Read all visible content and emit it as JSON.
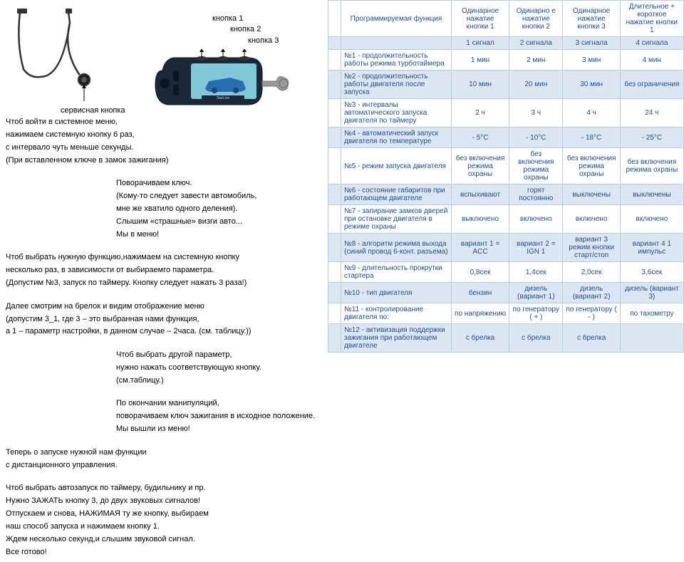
{
  "labels": {
    "btn1": "кнопка 1",
    "btn2": "кнопка 2",
    "btn3": "кнопка 3",
    "service": "сервисная кнопка"
  },
  "instr": {
    "p1a": "Чтоб войти в системное меню,",
    "p1b": "нажимаем системную кнопку 6 раз,",
    "p1c": "с интервало чуть меньше секунды.",
    "p1d": "(При вставленном ключе в замок зажигания)",
    "p2a": "Поворачиваем ключ.",
    "p2b": "(Кому-то следует завести автомобиль,",
    "p2c": "мне же хватило одного деления).",
    "p2d": "Слышим «страшные» визги авто...",
    "p2e": "Мы в меню!",
    "p3a": "Чтоб выбрать нужную функцию,нажимаем на системную кнопку",
    "p3b": "несколько раз, в зависимости от выбираемго параметра.",
    "p3c": "(Допустим №3, запуск по таймеру. Кнопку следует нажать 3 раза!)",
    "p4a": "Далее смотрим на брелок и видим отображение меню",
    "p4b": "(допустим 3_1, где 3 – это выбранная нами функция,",
    "p4c": "а 1 – параметр настройки, в данном случае – 2часа. (см. таблицу.))",
    "p5a": "Чтоб выбрать другой параметр,",
    "p5b": "нужно нажать соответствующую кнопку.",
    "p5c": "(см.таблицу.)",
    "p6a": "По окончании манипуляций,",
    "p6b": "поворачиваем ключ зажигания в исходное положение.",
    "p6c": "Мы вышли из меню!",
    "p7a": "Теперь о запуске нужной нам функции",
    "p7b": "с дистанционного управления.",
    "p8a": "Чтоб выбрать автозапуск по таймеру, будильнику и пр.",
    "p8b": "Нужно ЗАЖАТЬ кнопку 3, до двух звуковых сигналов!",
    "p8c": "Отпускаем и снова, НАЖИМАЯ ту же кнопку, выбираем",
    "p8d": "наш способ запуска и нажимаем кнопку 1.",
    "p8e": "Ждем несколько секунд,и слышим звуковой сигнал.",
    "p8f": "Все готово!"
  },
  "table": {
    "headers": [
      "",
      "Программируемая функция",
      "Одинарное нажатие кнопки 1",
      "Одинарно е нажатие кнопки 2",
      "Одинарное нажатие кнопки 3",
      "Длительное + короткое нажатие кнопки 1"
    ],
    "sig": [
      "",
      "",
      "1 сигнал",
      "2 сигнала",
      "3 сигнала",
      "4 сигнала"
    ],
    "rows": [
      {
        "n": "",
        "f": "№1 - продолжительность работы режима турботаймера",
        "c": [
          "1 мин",
          "2 мин",
          "3 мин",
          "4 мин"
        ]
      },
      {
        "n": "",
        "f": "№2 - продолжительность работы двигателя после запуска",
        "c": [
          "10 мин",
          "20 мин",
          "30 мин",
          "без ограничения"
        ]
      },
      {
        "n": "",
        "f": "№3 - интервалы автоматического запуска двигателя по таймеру",
        "c": [
          "2 ч",
          "3 ч",
          "4 ч",
          "24 ч"
        ]
      },
      {
        "n": "",
        "f": "№4 - автоматический запуск двигателя по температуре",
        "c": [
          "- 5°C",
          "- 10°C",
          "- 18°C",
          "- 25°C"
        ]
      },
      {
        "n": "",
        "f": "№5 - режим запуска двигателя",
        "c": [
          "без включения режима охраны",
          "без включения режима охраны",
          "без включения режима охраны",
          "без включения режима охраны"
        ]
      },
      {
        "n": "",
        "f": "№6 - состояние габаритов при работающем двигателе",
        "c": [
          "вспыхивают",
          "горят постоянно",
          "выключены",
          "выключены"
        ]
      },
      {
        "n": "",
        "f": "№7 - запирание замков дверей при остановке двигателя в режиме охраны",
        "c": [
          "выключено",
          "включено",
          "включено",
          "включено"
        ]
      },
      {
        "n": "",
        "f": "№8 - алгоритм режима выхода (синий провод 6-конт. разъема)",
        "c": [
          "вариант 1 = ACC",
          "вариант 2 = IGN 1",
          "вариант 3 режим кнопки старт/стоп",
          "вариант 4 1 импульс"
        ]
      },
      {
        "n": "",
        "f": "№9 - длительность прокрутки стартера",
        "c": [
          "0,8сек",
          "1,4сек",
          "2,0сек",
          "3,6сек"
        ]
      },
      {
        "n": "",
        "f": "№10 - тип двигателя",
        "c": [
          "бензин",
          "дизель (вариант 1)",
          "дизель (вариант 2)",
          "дизель (вариант 3)"
        ]
      },
      {
        "n": "",
        "f": "№11 - контролирование двигателя по:",
        "c": [
          "по напряжению",
          "по генератору ( + )",
          "по генератору ( - )",
          "по тахометру"
        ]
      },
      {
        "n": "",
        "f": "№12 - активизация поддержки зажигания при работающем двигателе",
        "c": [
          "с брелка",
          "с брелка",
          "с брелка",
          ""
        ]
      }
    ]
  }
}
